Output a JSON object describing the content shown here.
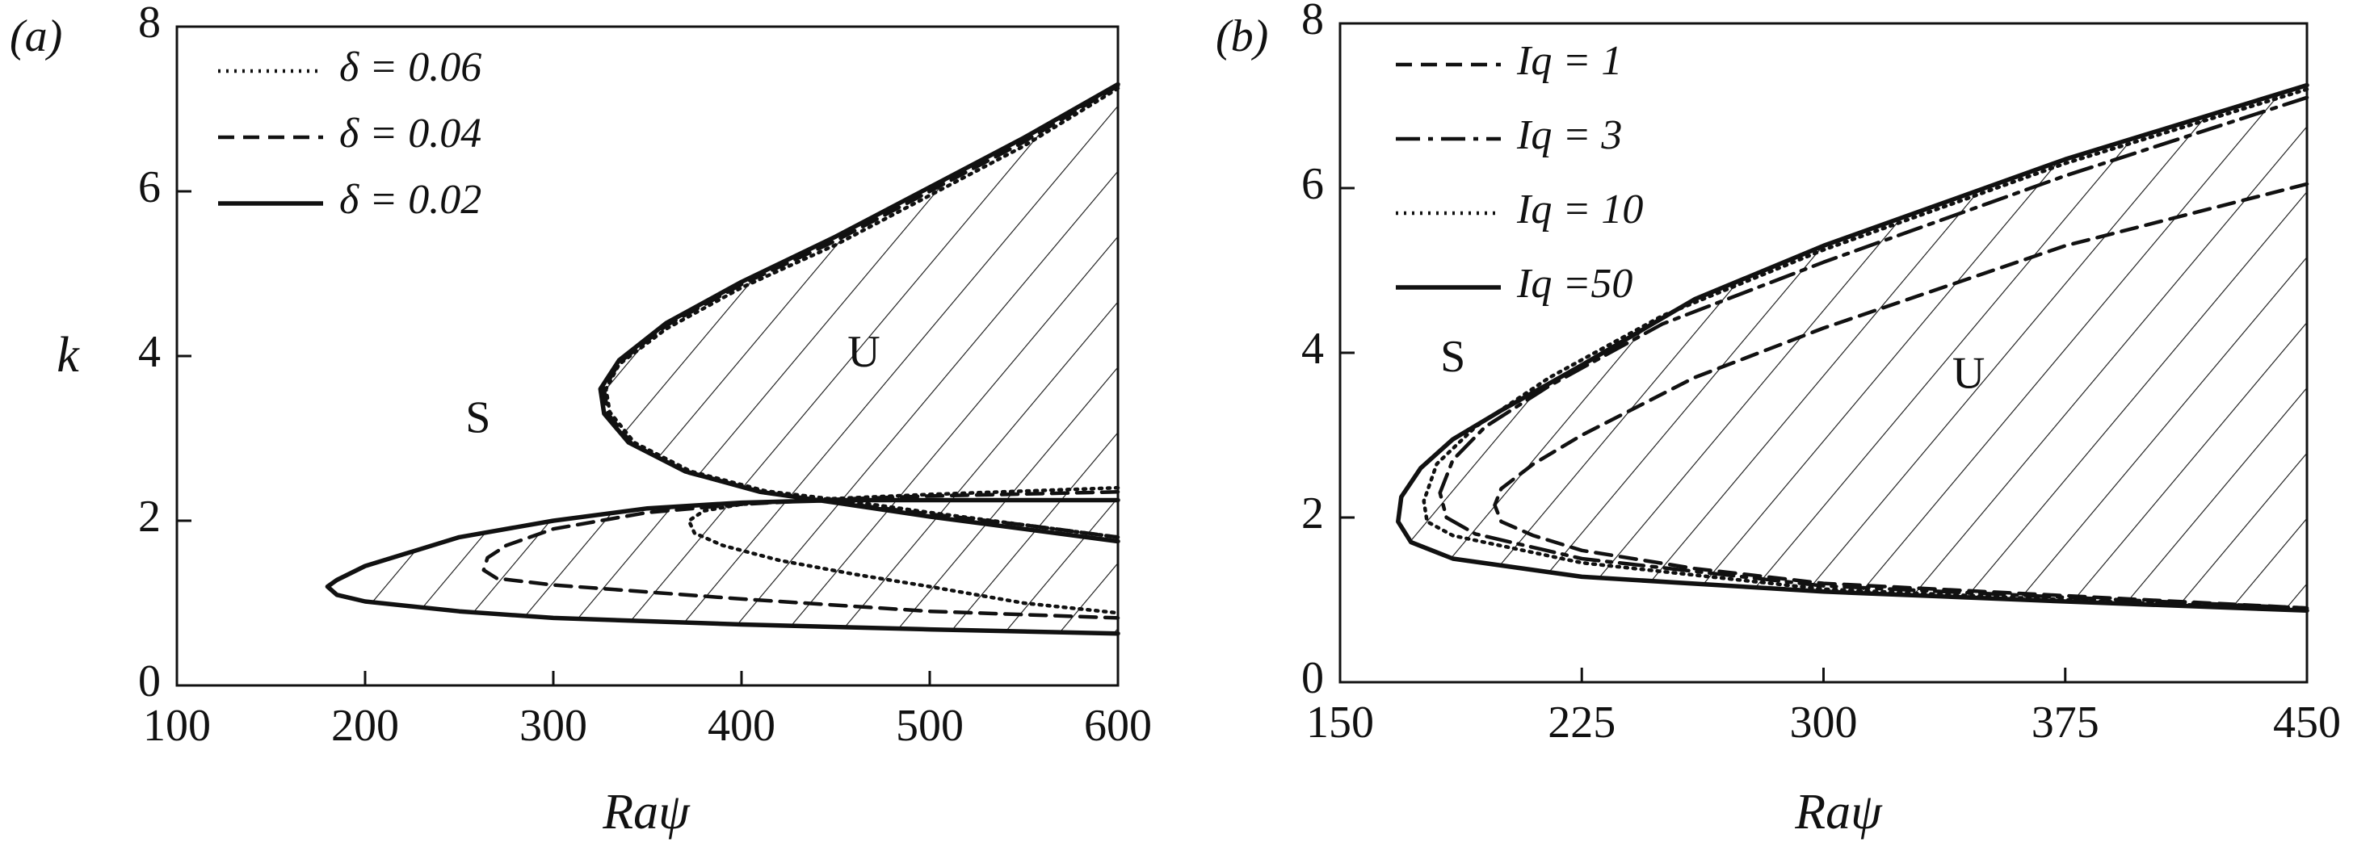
{
  "chart_data": [
    {
      "type": "line",
      "panel_label": "(a)",
      "xlabel": "Raψ",
      "ylabel": "k",
      "xlim": [
        100,
        600
      ],
      "xticks": [
        100,
        200,
        300,
        400,
        500,
        600
      ],
      "ylim": [
        0,
        8
      ],
      "yticks": [
        0,
        2,
        4,
        6,
        8
      ],
      "legend": "upper left",
      "annotations": [
        {
          "text": "S",
          "x": 260,
          "y": 3.2
        },
        {
          "text": "U",
          "x": 465,
          "y": 4.0
        }
      ],
      "series": [
        {
          "name": "δ = 0.06",
          "color": "#111111",
          "style": "dotted",
          "x": [
            600,
            550,
            500,
            450,
            400,
            360,
            335,
            328,
            330,
            343,
            373,
            413,
            453,
            500,
            550,
            600,
            null,
            600,
            500,
            450,
            400,
            380,
            372,
            375,
            390,
            420,
            460,
            500,
            550,
            600
          ],
          "values": [
            7.25,
            6.55,
            5.95,
            5.35,
            4.83,
            4.33,
            3.9,
            3.6,
            3.32,
            2.95,
            2.6,
            2.36,
            2.25,
            2.1,
            1.95,
            1.8,
            null,
            2.4,
            2.32,
            2.27,
            2.2,
            2.12,
            2.0,
            1.85,
            1.7,
            1.52,
            1.35,
            1.2,
            1.0,
            0.88
          ]
        },
        {
          "name": "δ = 0.04",
          "color": "#111111",
          "style": "dashed",
          "x": [
            600,
            550,
            500,
            450,
            400,
            360,
            335,
            327,
            329,
            342,
            372,
            412,
            452,
            500,
            550,
            600,
            null,
            600,
            500,
            450,
            400,
            350,
            300,
            275,
            265,
            263,
            270,
            300,
            400,
            500,
            600
          ],
          "values": [
            7.28,
            6.6,
            6.0,
            5.4,
            4.87,
            4.37,
            3.92,
            3.6,
            3.3,
            2.93,
            2.58,
            2.34,
            2.22,
            2.08,
            1.95,
            1.8,
            null,
            2.35,
            2.3,
            2.26,
            2.2,
            2.1,
            1.9,
            1.7,
            1.55,
            1.4,
            1.3,
            1.22,
            1.05,
            0.9,
            0.82
          ]
        },
        {
          "name": "δ = 0.02",
          "color": "#111111",
          "style": "solid",
          "hatch": true,
          "x": [
            600,
            550,
            500,
            450,
            400,
            360,
            335,
            325,
            327,
            340,
            370,
            410,
            450,
            500,
            550,
            600,
            null,
            600,
            500,
            450,
            400,
            350,
            300,
            250,
            200,
            185,
            180,
            185,
            200,
            250,
            300,
            400,
            500,
            600
          ],
          "values": [
            7.3,
            6.65,
            6.05,
            5.45,
            4.9,
            4.4,
            3.95,
            3.6,
            3.3,
            2.95,
            2.6,
            2.35,
            2.22,
            2.05,
            1.9,
            1.75,
            null,
            2.25,
            2.25,
            2.25,
            2.22,
            2.15,
            2.0,
            1.8,
            1.45,
            1.28,
            1.2,
            1.1,
            1.02,
            0.9,
            0.82,
            0.74,
            0.68,
            0.63
          ]
        }
      ]
    },
    {
      "type": "line",
      "panel_label": "(b)",
      "xlabel": "Raψ",
      "xlim": [
        150,
        450
      ],
      "xticks": [
        150,
        225,
        300,
        375,
        450
      ],
      "ylim": [
        0,
        8
      ],
      "yticks": [
        0,
        2,
        4,
        6,
        8
      ],
      "legend": "upper left",
      "annotations": [
        {
          "text": "S",
          "x": 185,
          "y": 3.9
        },
        {
          "text": "U",
          "x": 345,
          "y": 3.7
        }
      ],
      "series": [
        {
          "name": "Iq = 1",
          "color": "#111111",
          "style": "dashed",
          "x": [
            450,
            375,
            300,
            260,
            225,
            210,
            200,
            198,
            200,
            210,
            225,
            260,
            300,
            375,
            450
          ],
          "values": [
            6.05,
            5.3,
            4.3,
            3.7,
            3.0,
            2.65,
            2.35,
            2.15,
            1.95,
            1.78,
            1.6,
            1.38,
            1.2,
            1.05,
            0.9
          ]
        },
        {
          "name": "Iq = 3",
          "color": "#111111",
          "style": "dashdot",
          "x": [
            450,
            375,
            300,
            250,
            215,
            195,
            185,
            181,
            183,
            192,
            225,
            300,
            375,
            450
          ],
          "values": [
            7.1,
            6.15,
            5.1,
            4.35,
            3.6,
            3.1,
            2.7,
            2.3,
            2.0,
            1.8,
            1.5,
            1.17,
            1.03,
            0.9
          ]
        },
        {
          "name": "Iq = 10",
          "color": "#111111",
          "style": "dotted",
          "x": [
            450,
            375,
            300,
            250,
            215,
            192,
            180,
            176,
            177,
            185,
            225,
            300,
            375,
            450
          ],
          "values": [
            7.2,
            6.3,
            5.25,
            4.45,
            3.7,
            3.1,
            2.65,
            2.2,
            1.95,
            1.78,
            1.45,
            1.13,
            1.0,
            0.88
          ]
        },
        {
          "name": "Iq =50",
          "color": "#111111",
          "style": "solid",
          "hatch": true,
          "x": [
            450,
            375,
            300,
            260,
            225,
            200,
            185,
            175,
            169,
            168,
            172,
            185,
            225,
            300,
            375,
            450
          ],
          "values": [
            7.25,
            6.35,
            5.3,
            4.65,
            3.85,
            3.3,
            2.95,
            2.6,
            2.25,
            1.95,
            1.7,
            1.5,
            1.28,
            1.1,
            0.98,
            0.87
          ]
        }
      ]
    }
  ]
}
